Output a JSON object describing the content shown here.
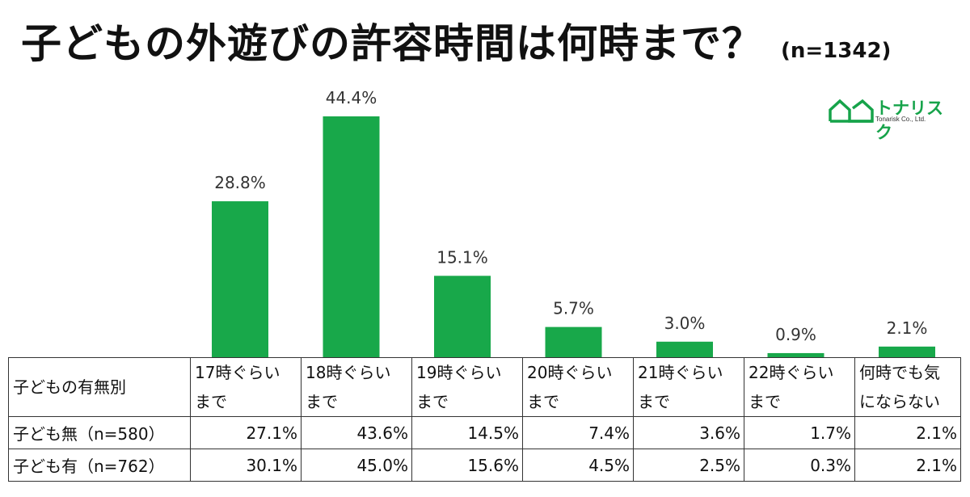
{
  "header": {
    "title": "子どもの外遊びの許容時間は何時まで？",
    "sample": "(n=1342)"
  },
  "logo": {
    "icon": "house-outline-icon",
    "name": "トナリスク",
    "sub": "Tonarisk Co., Ltd."
  },
  "colors": {
    "bar": "#18a84a",
    "logo": "#16a34a"
  },
  "chart_data": {
    "type": "bar",
    "title": "子どもの外遊びの許容時間は何時まで？",
    "categories": [
      "17時ぐらいまで",
      "18時ぐらいまで",
      "19時ぐらいまで",
      "20時ぐらいまで",
      "21時ぐらいまで",
      "22時ぐらいまで",
      "何時でも気にならない"
    ],
    "values": [
      28.8,
      44.4,
      15.1,
      5.7,
      3.0,
      0.9,
      2.1
    ],
    "labels": [
      "28.8%",
      "44.4%",
      "15.1%",
      "5.7%",
      "3.0%",
      "0.9%",
      "2.1%"
    ],
    "ylim": [
      0,
      44.4
    ],
    "grid": false
  },
  "table": {
    "corner": "子どもの有無別",
    "columns": [
      [
        "17時ぐらい",
        "まで"
      ],
      [
        "18時ぐらい",
        "まで"
      ],
      [
        "19時ぐらい",
        "まで"
      ],
      [
        "20時ぐらい",
        "まで"
      ],
      [
        "21時ぐらい",
        "まで"
      ],
      [
        "22時ぐらい",
        "まで"
      ],
      [
        "何時でも気",
        "にならない"
      ]
    ],
    "rows": [
      {
        "label": "子ども無（n=580）",
        "cells": [
          "27.1%",
          "43.6%",
          "14.5%",
          "7.4%",
          "3.6%",
          "1.7%",
          "2.1%"
        ]
      },
      {
        "label": "子ども有（n=762）",
        "cells": [
          "30.1%",
          "45.0%",
          "15.6%",
          "4.5%",
          "2.5%",
          "0.3%",
          "2.1%"
        ]
      }
    ]
  }
}
